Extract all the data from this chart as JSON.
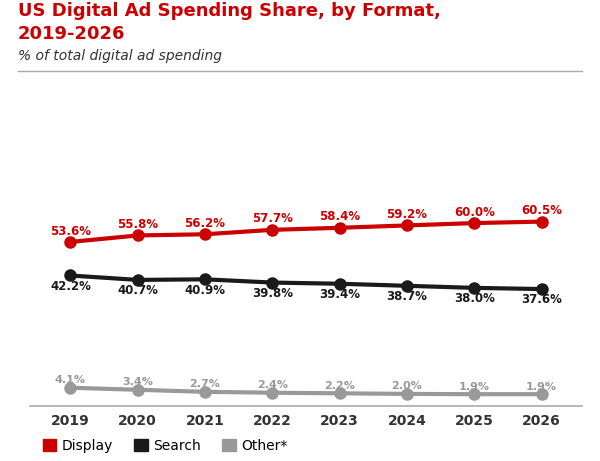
{
  "title_line1": "US Digital Ad Spending Share, by Format,",
  "title_line2": "2019-2026",
  "subtitle": "% of total digital ad spending",
  "years": [
    2019,
    2020,
    2021,
    2022,
    2023,
    2024,
    2025,
    2026
  ],
  "display": [
    53.6,
    55.8,
    56.2,
    57.7,
    58.4,
    59.2,
    60.0,
    60.5
  ],
  "search": [
    42.2,
    40.7,
    40.9,
    39.8,
    39.4,
    38.7,
    38.0,
    37.6
  ],
  "other": [
    4.1,
    3.4,
    2.7,
    2.4,
    2.2,
    2.0,
    1.9,
    1.9
  ],
  "display_color": "#cc0000",
  "search_color": "#1a1a1a",
  "other_color": "#999999",
  "background_color": "#ffffff",
  "title_color": "#cc0000",
  "title2_color": "#cc0000",
  "subtitle_color": "#333333",
  "label_display_color": "#cc0000",
  "label_search_color": "#1a1a1a",
  "label_other_color": "#999999",
  "marker_size": 8,
  "line_width": 3
}
